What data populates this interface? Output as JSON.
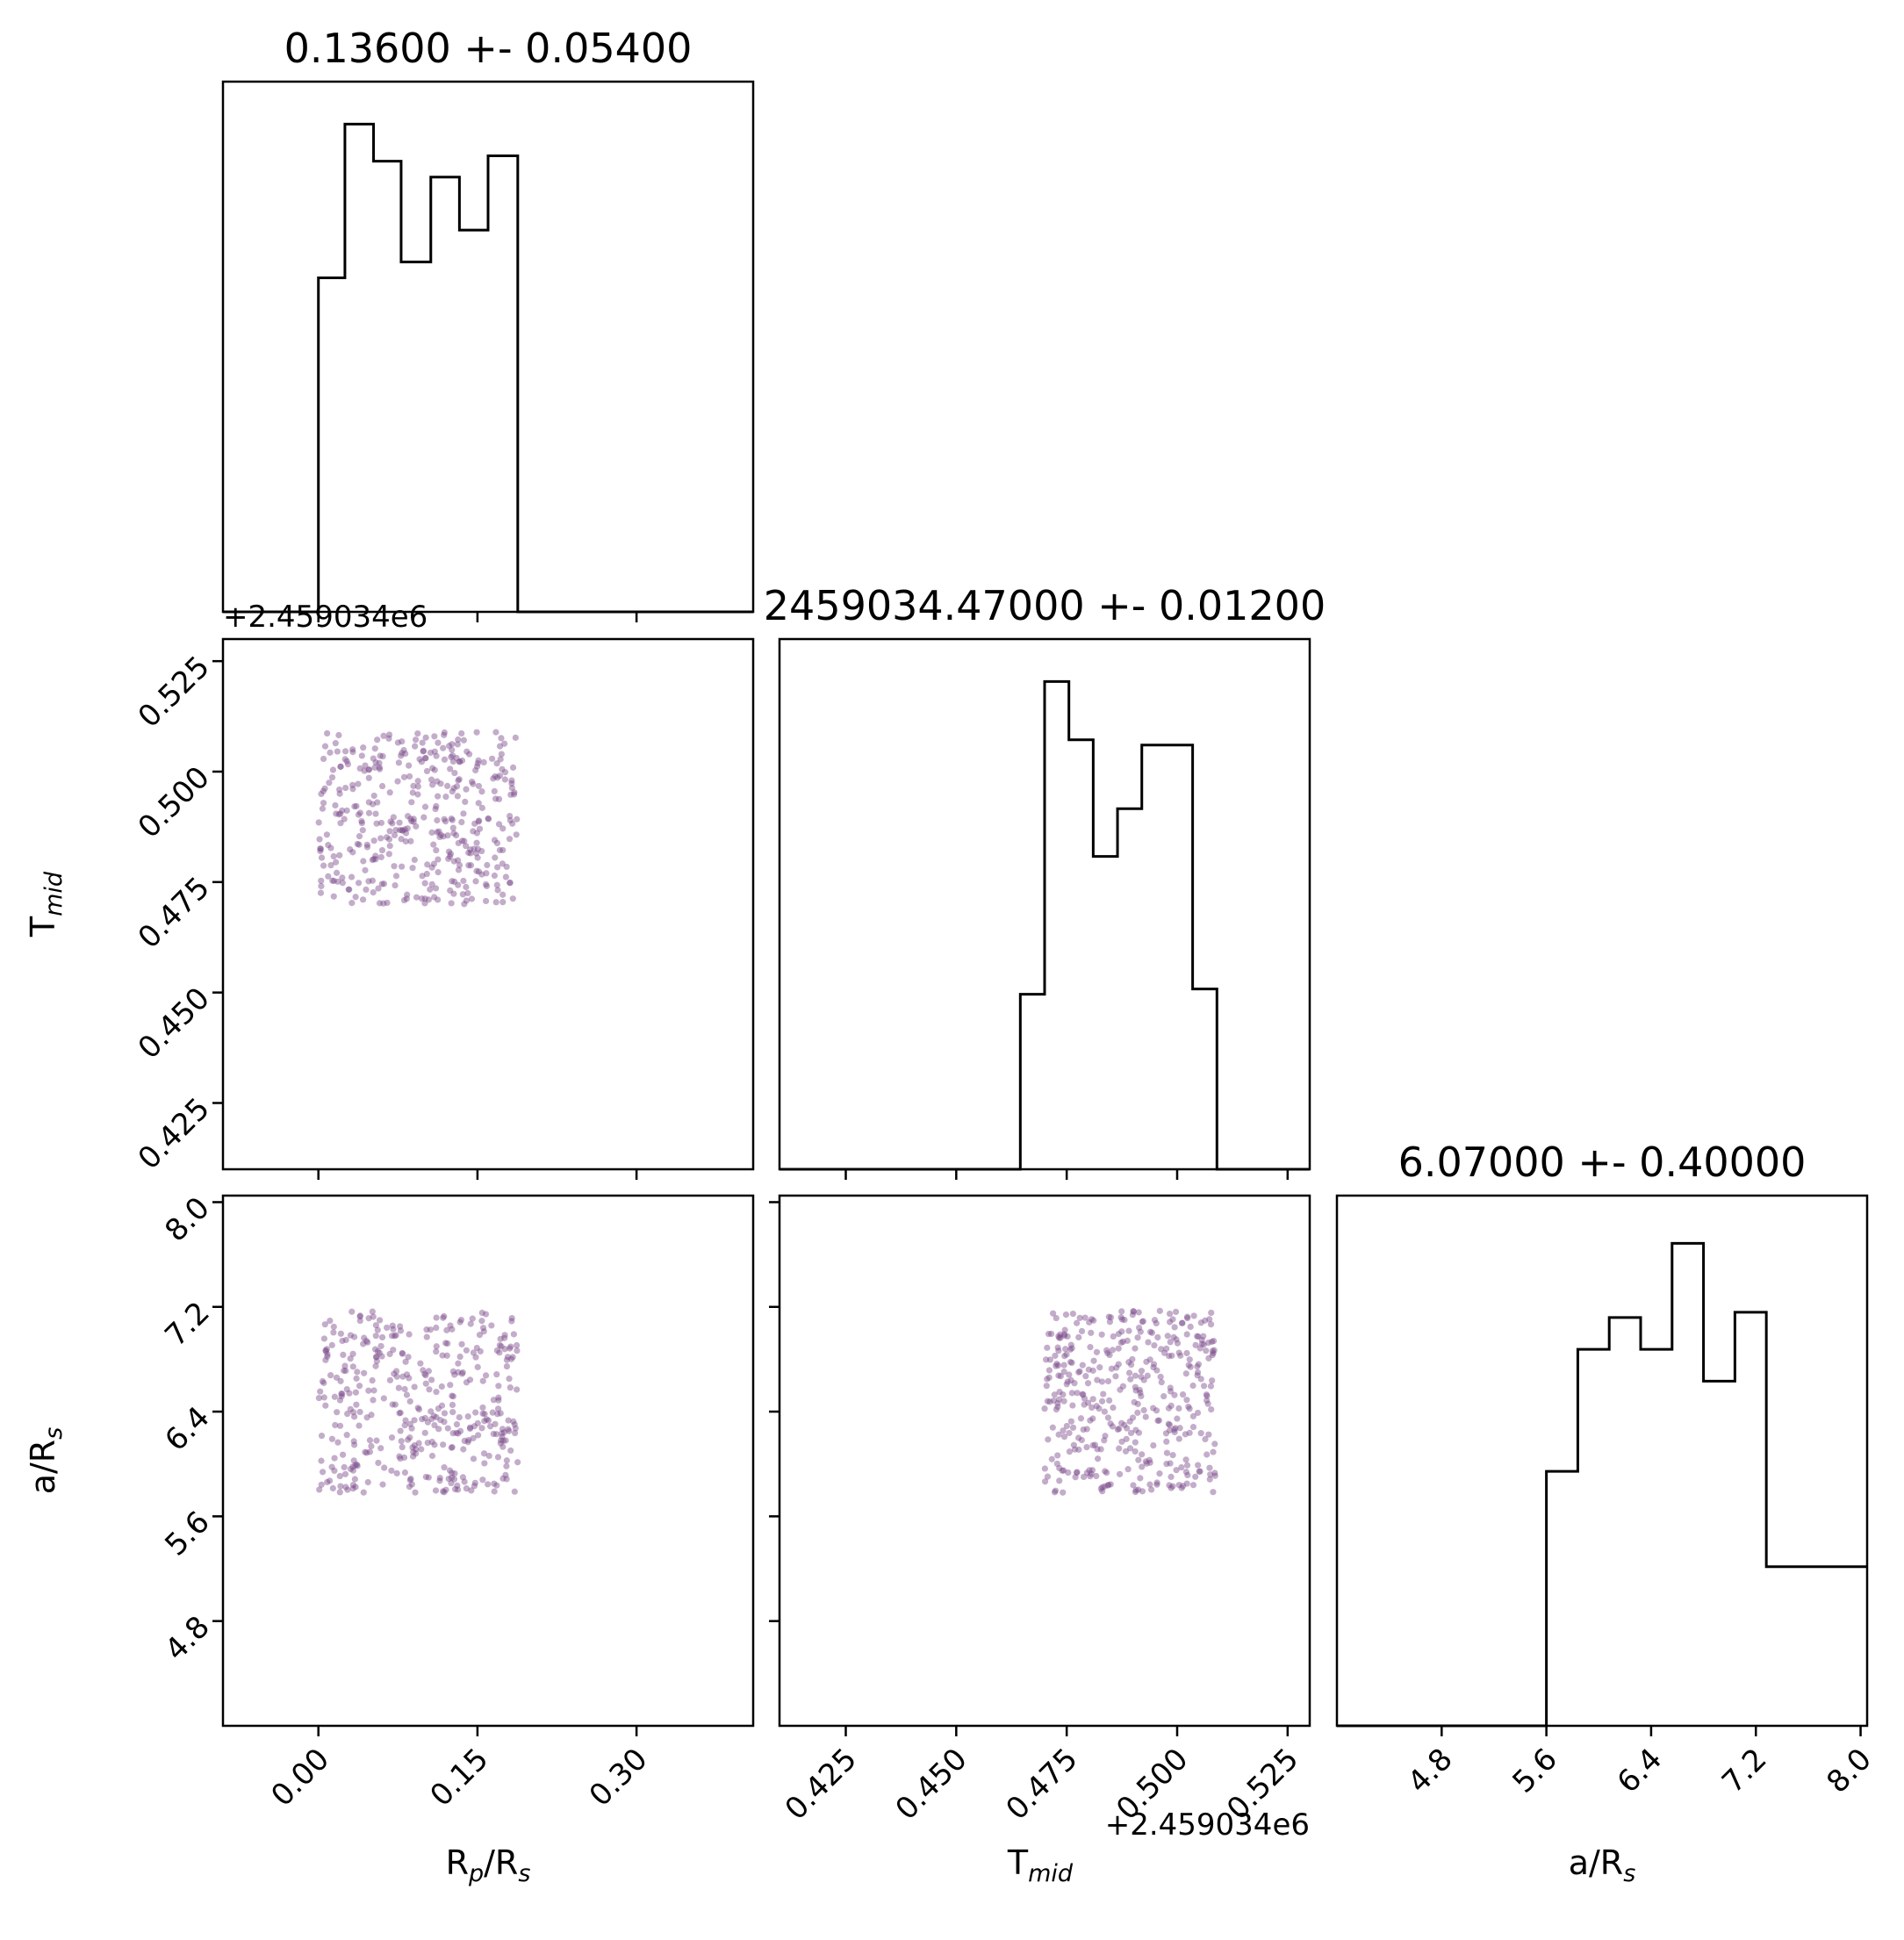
{
  "chart_data": {
    "type": "corner",
    "point_color": "#7b4a8a",
    "line_color": "#000000",
    "parameters": [
      {
        "key": "rp",
        "label_main": "R",
        "label_sub": "p",
        "label_mid": "/R",
        "label_sub2": "s"
      },
      {
        "key": "tmid",
        "label_main": "T",
        "label_sub": "mid",
        "label_mid": "",
        "label_sub2": ""
      },
      {
        "key": "ars",
        "label_main": "a/R",
        "label_sub": "s",
        "label_mid": "",
        "label_sub2": ""
      }
    ],
    "offset_text": "+2.459034e6",
    "titles": [
      "0.13600 +- 0.05400",
      "2459034.47000 +- 0.01200",
      "6.07000 +- 0.40000"
    ],
    "axes": {
      "rp": {
        "range": [
          -0.09,
          0.41
        ],
        "ticks": [
          0.0,
          0.15,
          0.3
        ],
        "tick_labels": [
          "0.00",
          "0.15",
          "0.30"
        ]
      },
      "tmid": {
        "range": [
          0.41,
          0.53
        ],
        "ticks": [
          0.425,
          0.45,
          0.475,
          0.5,
          0.525
        ],
        "tick_labels": [
          "0.425",
          "0.450",
          "0.475",
          "0.500",
          "0.525"
        ]
      },
      "ars": {
        "range": [
          4.0,
          8.05
        ],
        "ticks": [
          4.8,
          5.6,
          6.4,
          7.2,
          8.0
        ],
        "tick_labels": [
          "4.8",
          "5.6",
          "6.4",
          "7.2",
          "8.0"
        ]
      }
    },
    "histograms": {
      "rp": {
        "edges": [
          -0.09,
          0.0,
          0.025,
          0.052,
          0.078,
          0.106,
          0.133,
          0.16,
          0.188,
          0.41
        ],
        "counts": [
          0,
          0.63,
          0.92,
          0.85,
          0.66,
          0.82,
          0.72,
          0.86,
          0
        ]
      },
      "tmid": {
        "edges": [
          0.41,
          0.4645,
          0.47,
          0.4755,
          0.481,
          0.4865,
          0.492,
          0.5035,
          0.509,
          0.53
        ],
        "counts": [
          0,
          0.33,
          0.92,
          0.81,
          0.59,
          0.68,
          0.8,
          0.34,
          0
        ]
      },
      "ars": {
        "edges": [
          4.0,
          5.6,
          5.84,
          6.08,
          6.32,
          6.56,
          6.8,
          7.04,
          7.28,
          8.05
        ],
        "counts": [
          0,
          0.48,
          0.71,
          0.77,
          0.71,
          0.91,
          0.65,
          0.78,
          0.3
        ]
      }
    },
    "scatter_bounds": {
      "rp": [
        0.0,
        0.188
      ],
      "tmid": [
        0.47,
        0.509
      ],
      "ars": [
        5.78,
        7.17
      ]
    },
    "scatter_count": 400,
    "grid": false
  }
}
